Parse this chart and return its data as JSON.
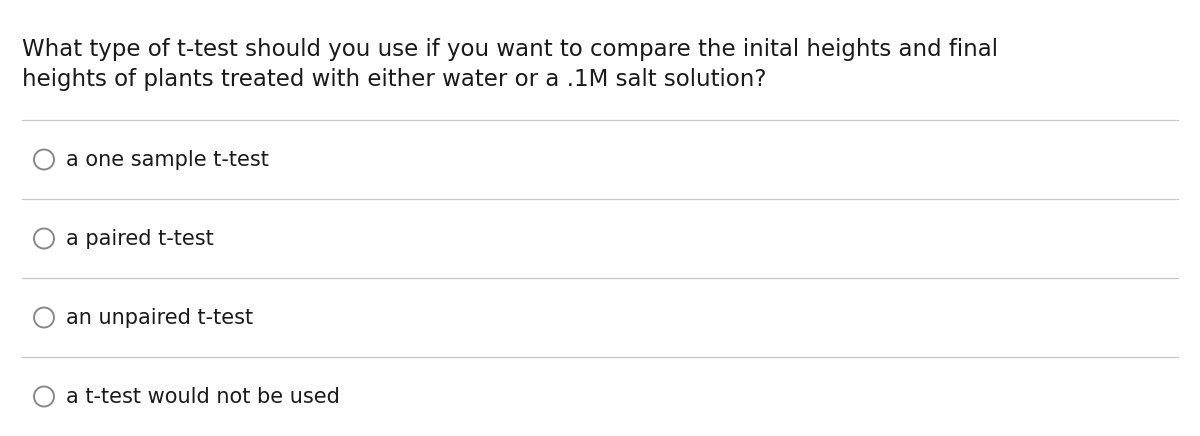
{
  "background_color": "#ffffff",
  "question_text_line1": "What type of t-test should you use if you want to compare the inital heights and final",
  "question_text_line2": "heights of plants treated with either water or a .1M salt solution?",
  "options": [
    "a one sample t-test",
    "a paired t-test",
    "an unpaired t-test",
    "a t-test would not be used"
  ],
  "text_color": "#1a1a1a",
  "line_color": "#c8c8c8",
  "circle_edge_color": "#888888",
  "font_size_question": 16.5,
  "font_size_option": 15,
  "fig_width": 12.0,
  "fig_height": 4.36,
  "dpi": 100
}
